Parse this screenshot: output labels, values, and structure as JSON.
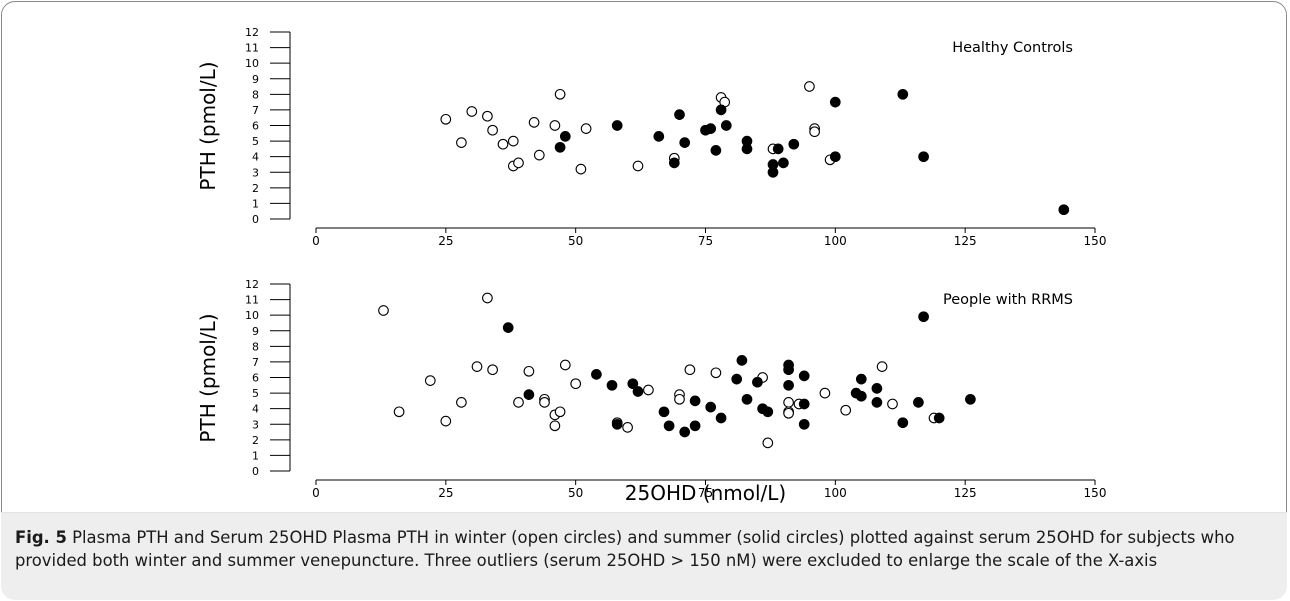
{
  "chart_data": [
    {
      "type": "scatter",
      "panel_label": "Healthy Controls",
      "ylabel": "PTH (pmol/L)",
      "xlabel": "",
      "xlim": [
        0,
        150
      ],
      "ylim": [
        0,
        12
      ],
      "xticks": [
        0,
        25,
        50,
        75,
        100,
        125,
        150
      ],
      "yticks": [
        0,
        1,
        2,
        3,
        4,
        5,
        6,
        7,
        8,
        9,
        10,
        11,
        12
      ],
      "grid": false,
      "series": [
        {
          "marker": "open-circle",
          "x": [
            25,
            28,
            30,
            33,
            34,
            36,
            38,
            38,
            39,
            42,
            43,
            46,
            47,
            51,
            52,
            62,
            69,
            78,
            78.7,
            88,
            95,
            96,
            96,
            99
          ],
          "y": [
            6.4,
            4.9,
            6.9,
            6.6,
            5.7,
            4.8,
            5.0,
            3.4,
            3.6,
            6.2,
            4.1,
            6.0,
            8.0,
            3.2,
            5.8,
            3.4,
            3.9,
            7.8,
            7.5,
            4.5,
            8.5,
            5.8,
            5.6,
            3.8
          ]
        },
        {
          "marker": "solid-circle",
          "x": [
            47,
            48,
            58,
            66,
            69,
            70,
            71,
            75,
            76,
            77,
            78,
            79,
            83,
            83,
            88,
            88,
            89,
            90,
            92,
            100,
            100,
            113,
            117,
            144
          ],
          "y": [
            4.6,
            5.3,
            6.0,
            5.3,
            3.6,
            6.7,
            4.9,
            5.7,
            5.8,
            4.4,
            7.0,
            6.0,
            5.0,
            4.5,
            3.5,
            3.0,
            4.5,
            3.6,
            4.8,
            7.5,
            4.0,
            8.0,
            4.0,
            0.6
          ]
        }
      ]
    },
    {
      "type": "scatter",
      "panel_label": "People with RRMS",
      "ylabel": "PTH (pmol/L)",
      "xlabel": "25OHD (nmol/L)",
      "xlim": [
        0,
        150
      ],
      "ylim": [
        0,
        12
      ],
      "xticks": [
        0,
        25,
        50,
        75,
        100,
        125,
        150
      ],
      "yticks": [
        0,
        1,
        2,
        3,
        4,
        5,
        6,
        7,
        8,
        9,
        10,
        11,
        12
      ],
      "grid": false,
      "series": [
        {
          "marker": "open-circle",
          "x": [
            13,
            16,
            22,
            25,
            28,
            31,
            33,
            34,
            39,
            41,
            44,
            44,
            46,
            46,
            47,
            48,
            50,
            58,
            60,
            64,
            70,
            70,
            72,
            77,
            86,
            87,
            91,
            91,
            91,
            93,
            98,
            102,
            109,
            111,
            119
          ],
          "y": [
            10.3,
            3.8,
            5.8,
            3.2,
            4.4,
            6.7,
            11.1,
            6.5,
            4.4,
            6.4,
            4.6,
            4.4,
            3.6,
            2.9,
            3.8,
            6.8,
            5.6,
            3.1,
            2.8,
            5.2,
            4.9,
            4.6,
            6.5,
            6.3,
            6.0,
            1.8,
            4.4,
            3.8,
            3.7,
            4.3,
            5.0,
            3.9,
            6.7,
            4.3,
            3.4
          ]
        },
        {
          "marker": "solid-circle",
          "x": [
            37,
            41,
            54,
            57,
            58,
            61,
            62,
            67,
            68,
            71,
            73,
            73,
            76,
            78,
            81,
            82,
            83,
            85,
            86,
            87,
            91,
            91,
            91,
            94,
            94,
            94,
            104,
            105,
            105,
            108,
            108,
            113,
            116,
            117,
            120,
            126
          ],
          "y": [
            9.2,
            4.9,
            6.2,
            5.5,
            3.0,
            5.6,
            5.1,
            3.8,
            2.9,
            2.5,
            4.5,
            2.9,
            4.1,
            3.4,
            5.9,
            7.1,
            4.6,
            5.7,
            4.0,
            3.8,
            6.8,
            6.5,
            5.5,
            6.1,
            4.3,
            3.0,
            5.0,
            5.9,
            4.8,
            5.3,
            4.4,
            3.1,
            4.4,
            9.9,
            3.4,
            4.6
          ]
        }
      ]
    }
  ],
  "caption": {
    "label": "Fig. 5",
    "text": "Plasma PTH and Serum 25OHD Plasma PTH in winter (open circles) and summer (solid circles) plotted against serum 25OHD for subjects who provided both winter and summer venepuncture. Three outliers (serum 25OHD > 150 nM) were excluded to enlarge the scale of the X-axis"
  }
}
